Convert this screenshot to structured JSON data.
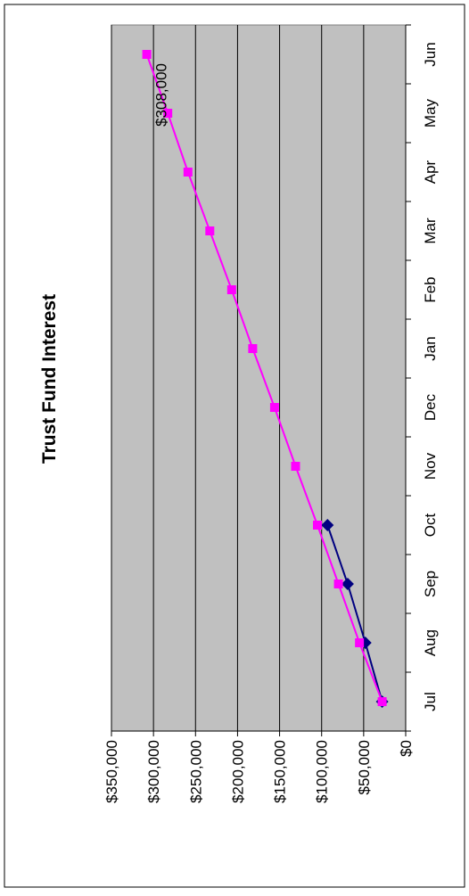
{
  "chart_data": {
    "type": "line",
    "title": "Trust Fund Interest",
    "categories": [
      "Jul",
      "Aug",
      "Sep",
      "Oct",
      "Nov",
      "Dec",
      "Jan",
      "Feb",
      "Mar",
      "Apr",
      "May",
      "Jun"
    ],
    "series": [
      {
        "color": "#ff00ff",
        "marker": "square",
        "values": [
          28000,
          55000,
          80000,
          105000,
          131000,
          156000,
          182000,
          207000,
          233000,
          259000,
          283000,
          308000
        ]
      },
      {
        "color": "#000080",
        "marker": "diamond",
        "values": [
          28000,
          48000,
          69000,
          93000,
          null,
          null,
          null,
          null,
          null,
          null,
          null,
          null
        ]
      }
    ],
    "ylim": [
      0,
      350000
    ],
    "yticks": [
      {
        "value": 0,
        "label": "$0"
      },
      {
        "value": 50000,
        "label": "$50,000"
      },
      {
        "value": 100000,
        "label": "$100,000"
      },
      {
        "value": 150000,
        "label": "$150,000"
      },
      {
        "value": 200000,
        "label": "$200,000"
      },
      {
        "value": 250000,
        "label": "$250,000"
      },
      {
        "value": 300000,
        "label": "$300,000"
      },
      {
        "value": 350000,
        "label": "$350,000"
      }
    ],
    "grid": true,
    "annotations": [
      {
        "text": "$308,000",
        "series": 0,
        "index": 11
      }
    ]
  }
}
